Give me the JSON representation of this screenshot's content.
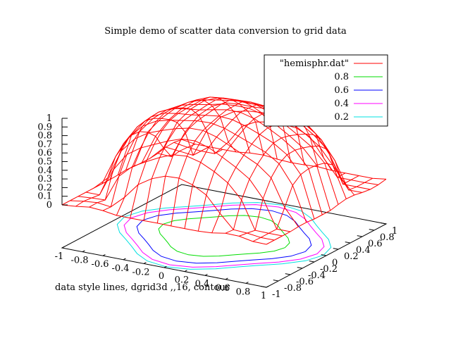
{
  "chart_data": {
    "type": "surface",
    "title": "Simple demo of scatter data conversion to grid data",
    "xlabel": "data style lines, dgrid3d ,,16, contour",
    "xlim": [
      -1,
      1
    ],
    "ylim": [
      -1,
      1
    ],
    "zlim": [
      0,
      1
    ],
    "grid_size": 16,
    "x_tick_labels": [
      "-1",
      "-0.8",
      "-0.6",
      "-0.4",
      "-0.2",
      "0",
      "0.2",
      "0.4",
      "0.6",
      "0.8",
      "1"
    ],
    "y_tick_labels": [
      "-1",
      "-0.8",
      "-0.6",
      "-0.4",
      "-0.2",
      "0",
      "0.2",
      "0.4",
      "0.6",
      "0.8",
      "1"
    ],
    "z_tick_labels": [
      "1",
      "0.9",
      "0.8",
      "0.7",
      "0.6",
      "0.5",
      "0.4",
      "0.3",
      "0.2",
      "0.1",
      "0"
    ],
    "series": [
      {
        "name": "\"hemisphr.dat\"",
        "kind": "surface",
        "color": "#ff0000",
        "function": "z = sqrt(1 - x^2 - y^2), gridded 16x16"
      },
      {
        "name": "0.8",
        "kind": "contour",
        "level": 0.8,
        "color": "#00dd00"
      },
      {
        "name": "0.6",
        "kind": "contour",
        "level": 0.6,
        "color": "#0000ff"
      },
      {
        "name": "0.4",
        "kind": "contour",
        "level": 0.4,
        "color": "#ff00ff"
      },
      {
        "name": "0.2",
        "kind": "contour",
        "level": 0.2,
        "color": "#00e0e0"
      }
    ],
    "legend_placement": "top-right"
  }
}
